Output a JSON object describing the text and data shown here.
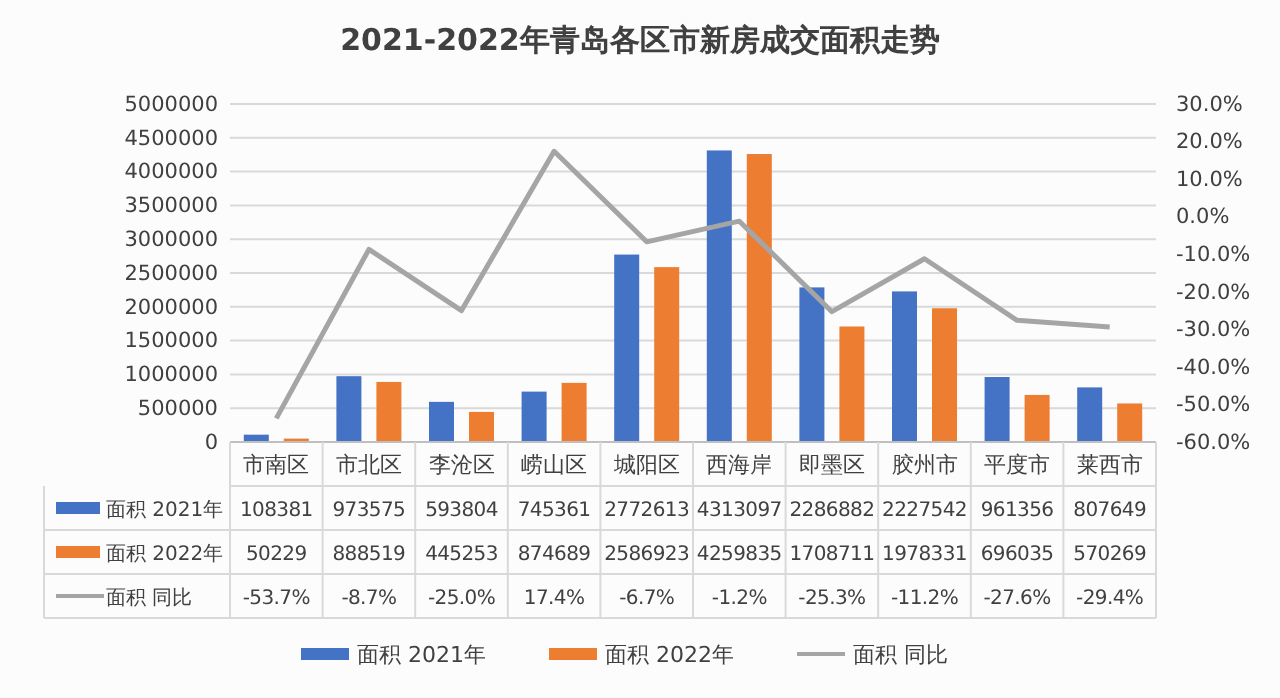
{
  "chart_data": {
    "type": "bar",
    "title": "2021-2022年青岛各区市新房成交面积走势",
    "categories": [
      "市南区",
      "市北区",
      "李沧区",
      "崂山区",
      "城阳区",
      "西海岸",
      "即墨区",
      "胶州市",
      "平度市",
      "莱西市"
    ],
    "series": [
      {
        "name": "面积 2021年",
        "color": "#4472c4",
        "values": [
          108381,
          973575,
          593804,
          745361,
          2772613,
          4313097,
          2286882,
          2227542,
          961356,
          807649
        ]
      },
      {
        "name": "面积 2022年",
        "color": "#ed7d31",
        "values": [
          50229,
          888519,
          445253,
          874689,
          2586923,
          4259835,
          1708711,
          1978331,
          696035,
          570269
        ]
      },
      {
        "name": "面积 同比",
        "type": "line",
        "axis": "y2",
        "color": "#a5a5a5",
        "values": [
          -53.7,
          -8.7,
          -25.0,
          17.4,
          -6.7,
          -1.2,
          -25.3,
          -11.2,
          -27.6,
          -29.4
        ],
        "value_labels": [
          "-53.7%",
          "-8.7%",
          "-25.0%",
          "17.4%",
          "-6.7%",
          "-1.2%",
          "-25.3%",
          "-11.2%",
          "-27.6%",
          "-29.4%"
        ]
      }
    ],
    "ylim": [
      0,
      5000000
    ],
    "yticks": [
      0,
      500000,
      1000000,
      1500000,
      2000000,
      2500000,
      3000000,
      3500000,
      4000000,
      4500000,
      5000000
    ],
    "y2lim": [
      -60,
      30
    ],
    "y2ticks": [
      {
        "value": -60,
        "label": "-60.0%"
      },
      {
        "value": -50,
        "label": "-50.0%"
      },
      {
        "value": -40,
        "label": "-40.0%"
      },
      {
        "value": -30,
        "label": "-30.0%"
      },
      {
        "value": -20,
        "label": "-20.0%"
      },
      {
        "value": -10,
        "label": "-10.0%"
      },
      {
        "value": 0,
        "label": "0.0%"
      },
      {
        "value": 10,
        "label": "10.0%"
      },
      {
        "value": 20,
        "label": "20.0%"
      },
      {
        "value": 30,
        "label": "30.0%"
      }
    ],
    "grid": "y",
    "legend": "bottom",
    "data_labels": true
  }
}
